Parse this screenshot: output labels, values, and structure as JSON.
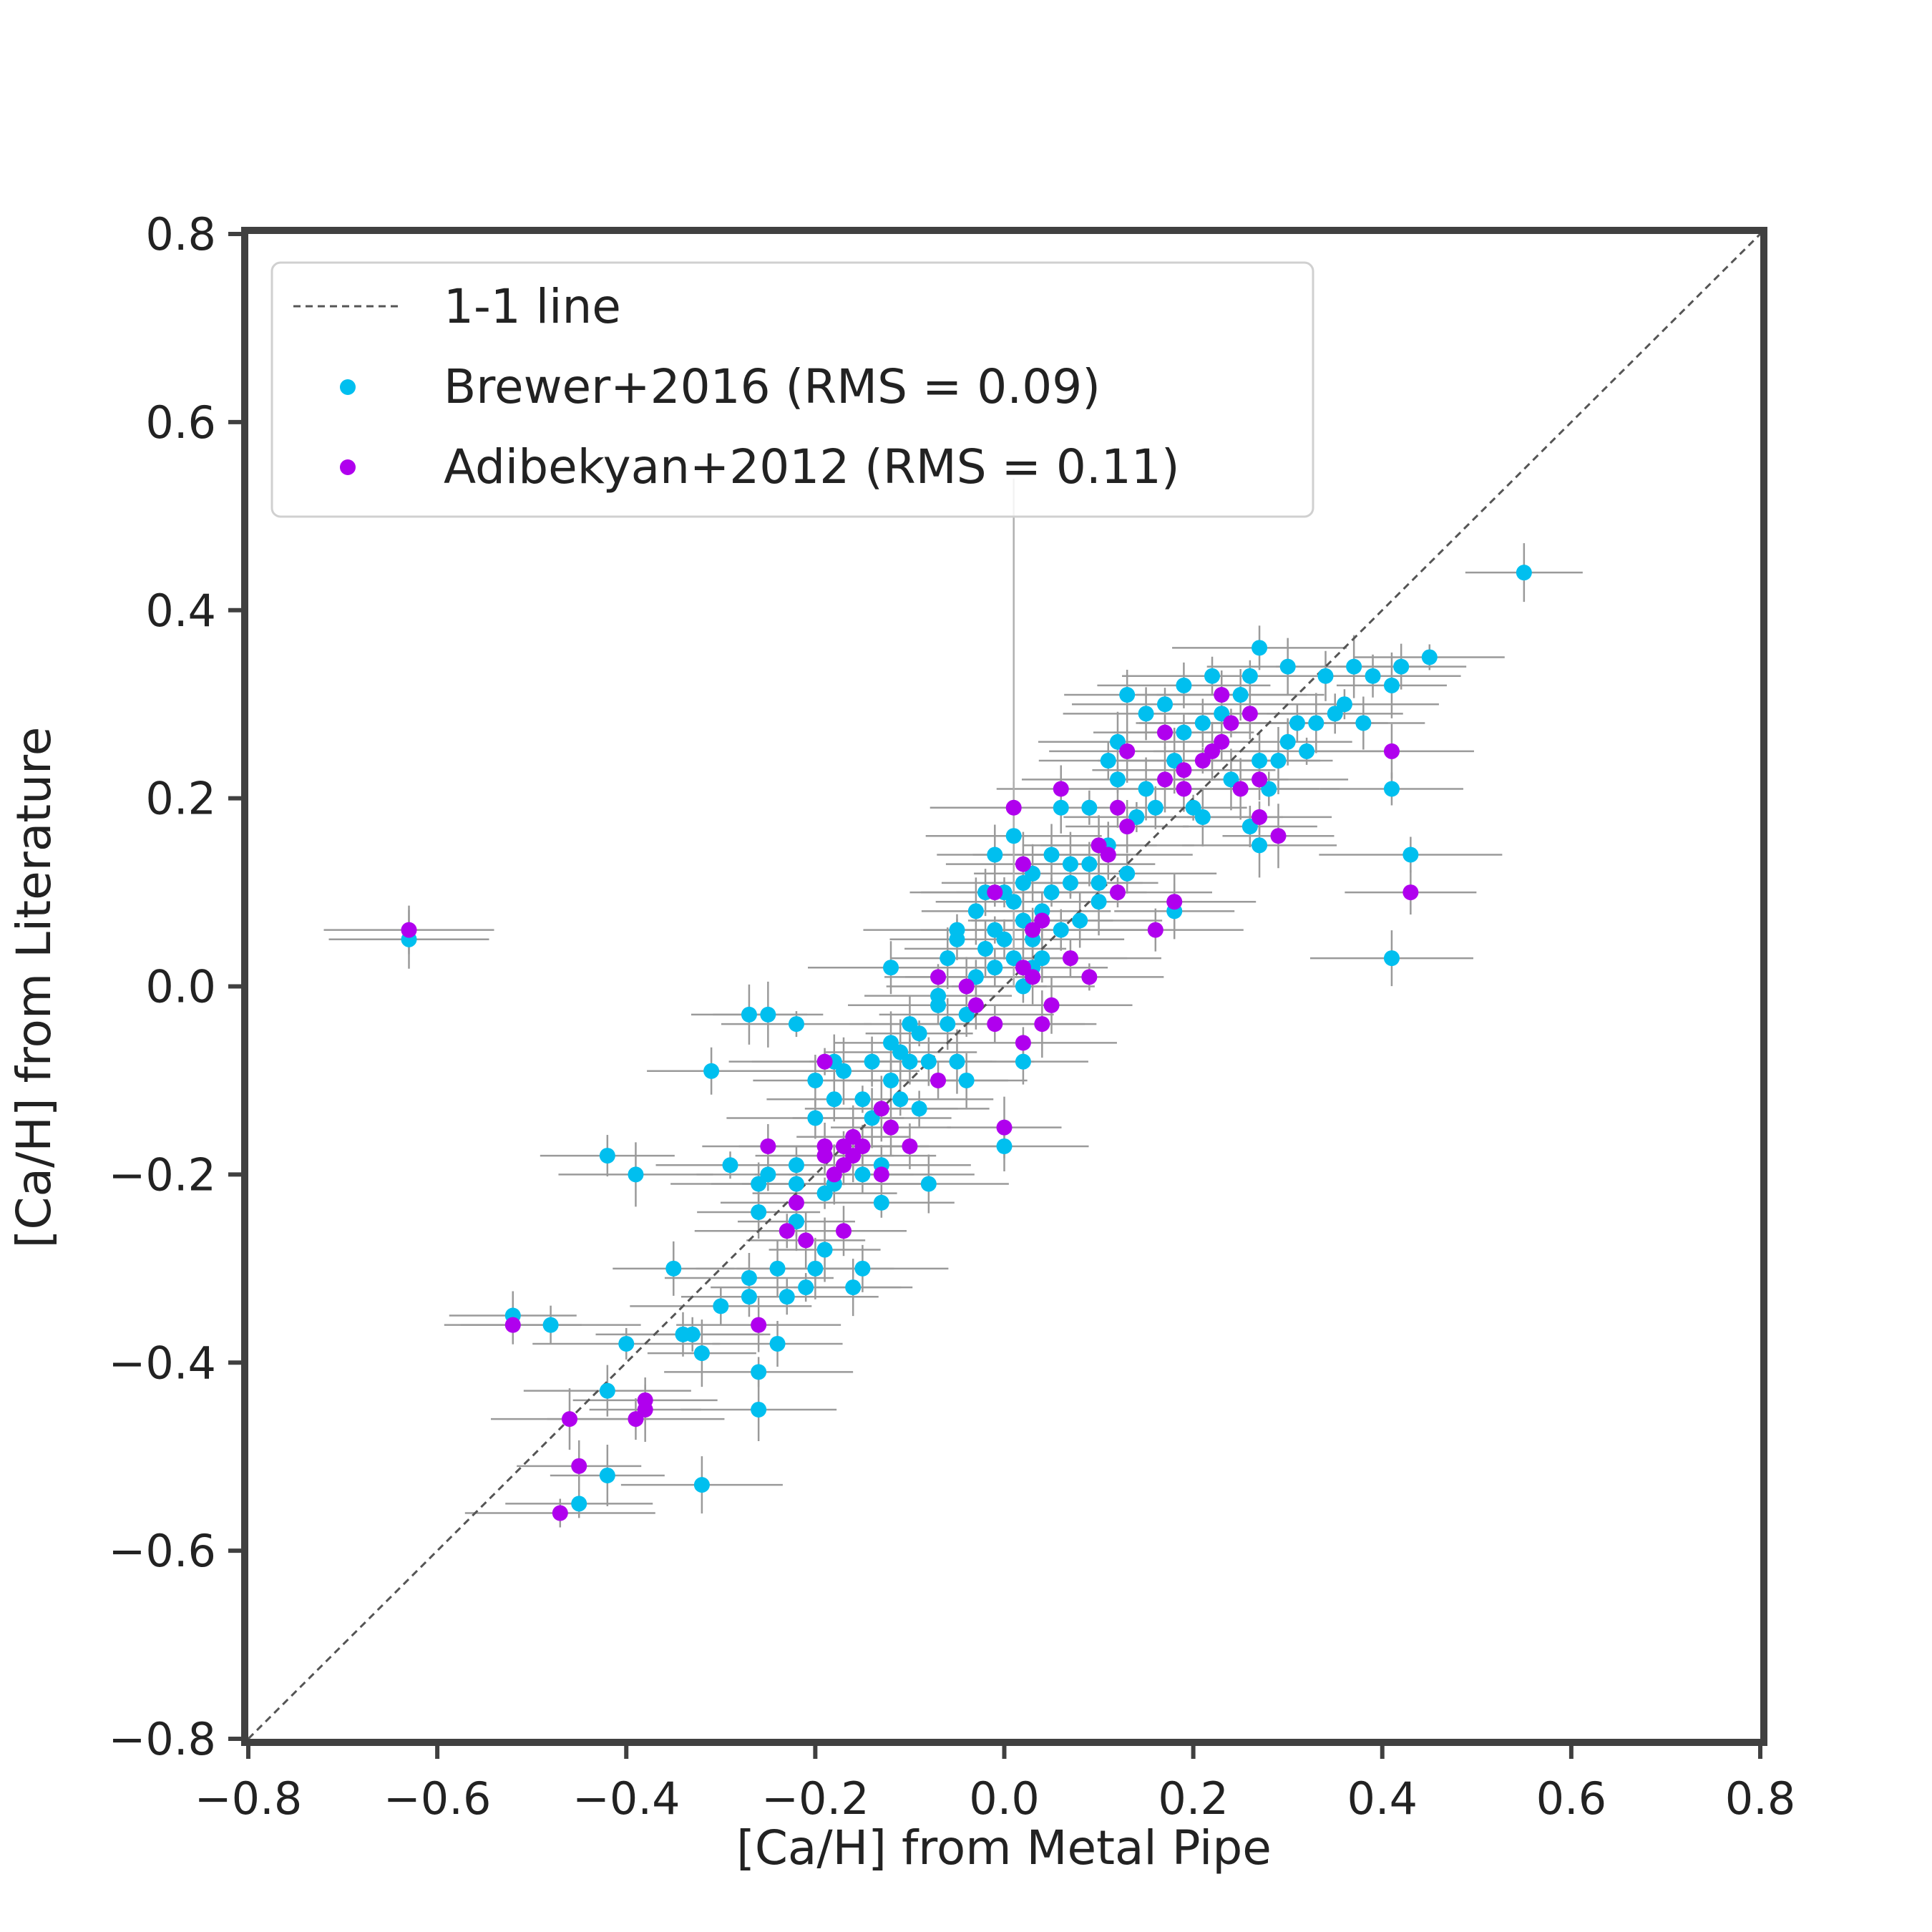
{
  "chart_data": {
    "type": "scatter",
    "xlabel": "[Ca/H] from Metal Pipe",
    "ylabel": "[Ca/H] from Literature",
    "xlim": [
      -0.8,
      0.8
    ],
    "ylim": [
      -0.8,
      0.8
    ],
    "xticks": [
      "−0.8",
      "−0.6",
      "−0.4",
      "−0.2",
      "0.0",
      "0.2",
      "0.4",
      "0.6",
      "0.8"
    ],
    "yticks": [
      "−0.8",
      "−0.6",
      "−0.4",
      "−0.2",
      "0.0",
      "0.2",
      "0.4",
      "0.6",
      "0.8"
    ],
    "grid": false,
    "legend_position": "top-left",
    "reference_line": {
      "label": "1-1 line",
      "style": "dashed",
      "color": "#555555"
    },
    "series": [
      {
        "name": "Brewer+2016 (RMS = 0.09)",
        "color": "#00BFEF",
        "points": [
          [
            -0.63,
            0.05
          ],
          [
            -0.52,
            -0.35
          ],
          [
            -0.48,
            -0.36
          ],
          [
            -0.45,
            -0.55
          ],
          [
            -0.42,
            -0.52
          ],
          [
            -0.42,
            -0.43
          ],
          [
            -0.42,
            -0.18
          ],
          [
            -0.4,
            -0.38
          ],
          [
            -0.39,
            -0.2
          ],
          [
            -0.35,
            -0.3
          ],
          [
            -0.34,
            -0.37
          ],
          [
            -0.33,
            -0.37
          ],
          [
            -0.32,
            -0.39
          ],
          [
            -0.32,
            -0.53
          ],
          [
            -0.31,
            -0.09
          ],
          [
            -0.3,
            -0.34
          ],
          [
            -0.29,
            -0.19
          ],
          [
            -0.27,
            -0.03
          ],
          [
            -0.27,
            -0.31
          ],
          [
            -0.27,
            -0.33
          ],
          [
            -0.26,
            -0.41
          ],
          [
            -0.26,
            -0.45
          ],
          [
            -0.26,
            -0.24
          ],
          [
            -0.26,
            -0.21
          ],
          [
            -0.25,
            -0.2
          ],
          [
            -0.25,
            -0.03
          ],
          [
            -0.24,
            -0.3
          ],
          [
            -0.24,
            -0.38
          ],
          [
            -0.23,
            -0.33
          ],
          [
            -0.22,
            -0.04
          ],
          [
            -0.22,
            -0.25
          ],
          [
            -0.22,
            -0.21
          ],
          [
            -0.22,
            -0.19
          ],
          [
            -0.21,
            -0.32
          ],
          [
            -0.2,
            -0.3
          ],
          [
            -0.2,
            -0.1
          ],
          [
            -0.2,
            -0.14
          ],
          [
            -0.19,
            -0.22
          ],
          [
            -0.19,
            -0.28
          ],
          [
            -0.18,
            -0.08
          ],
          [
            -0.18,
            -0.12
          ],
          [
            -0.18,
            -0.21
          ],
          [
            -0.17,
            -0.09
          ],
          [
            -0.16,
            -0.32
          ],
          [
            -0.15,
            -0.3
          ],
          [
            -0.15,
            -0.2
          ],
          [
            -0.15,
            -0.12
          ],
          [
            -0.14,
            -0.14
          ],
          [
            -0.14,
            -0.08
          ],
          [
            -0.13,
            -0.19
          ],
          [
            -0.13,
            -0.23
          ],
          [
            -0.12,
            -0.06
          ],
          [
            -0.12,
            0.02
          ],
          [
            -0.12,
            -0.1
          ],
          [
            -0.11,
            -0.12
          ],
          [
            -0.11,
            -0.07
          ],
          [
            -0.1,
            -0.04
          ],
          [
            -0.1,
            -0.08
          ],
          [
            -0.09,
            -0.13
          ],
          [
            -0.09,
            -0.05
          ],
          [
            -0.08,
            -0.21
          ],
          [
            -0.08,
            -0.08
          ],
          [
            -0.07,
            -0.02
          ],
          [
            -0.07,
            -0.01
          ],
          [
            -0.06,
            0.03
          ],
          [
            -0.06,
            -0.04
          ],
          [
            -0.05,
            0.05
          ],
          [
            -0.05,
            0.06
          ],
          [
            -0.05,
            -0.08
          ],
          [
            -0.04,
            -0.1
          ],
          [
            -0.04,
            -0.03
          ],
          [
            -0.03,
            0.01
          ],
          [
            -0.03,
            0.08
          ],
          [
            -0.02,
            0.04
          ],
          [
            -0.02,
            0.1
          ],
          [
            -0.01,
            0.02
          ],
          [
            -0.01,
            0.06
          ],
          [
            -0.01,
            0.14
          ],
          [
            0.0,
            -0.17
          ],
          [
            0.0,
            0.05
          ],
          [
            0.0,
            0.1
          ],
          [
            0.01,
            0.09
          ],
          [
            0.01,
            0.03
          ],
          [
            0.01,
            0.16
          ],
          [
            0.02,
            0.0
          ],
          [
            0.02,
            0.07
          ],
          [
            0.02,
            0.11
          ],
          [
            0.02,
            -0.08
          ],
          [
            0.03,
            0.05
          ],
          [
            0.03,
            0.02
          ],
          [
            0.03,
            0.12
          ],
          [
            0.04,
            0.03
          ],
          [
            0.04,
            0.08
          ],
          [
            0.05,
            0.1
          ],
          [
            0.05,
            0.14
          ],
          [
            0.06,
            0.19
          ],
          [
            0.06,
            0.06
          ],
          [
            0.07,
            0.11
          ],
          [
            0.07,
            0.13
          ],
          [
            0.08,
            0.07
          ],
          [
            0.09,
            0.13
          ],
          [
            0.09,
            0.19
          ],
          [
            0.1,
            0.09
          ],
          [
            0.1,
            0.11
          ],
          [
            0.11,
            0.15
          ],
          [
            0.11,
            0.24
          ],
          [
            0.12,
            0.22
          ],
          [
            0.12,
            0.26
          ],
          [
            0.13,
            0.31
          ],
          [
            0.13,
            0.12
          ],
          [
            0.14,
            0.18
          ],
          [
            0.15,
            0.21
          ],
          [
            0.15,
            0.29
          ],
          [
            0.16,
            0.19
          ],
          [
            0.17,
            0.3
          ],
          [
            0.18,
            0.24
          ],
          [
            0.18,
            0.08
          ],
          [
            0.19,
            0.32
          ],
          [
            0.19,
            0.27
          ],
          [
            0.2,
            0.19
          ],
          [
            0.21,
            0.18
          ],
          [
            0.21,
            0.28
          ],
          [
            0.22,
            0.33
          ],
          [
            0.23,
            0.29
          ],
          [
            0.24,
            0.22
          ],
          [
            0.25,
            0.31
          ],
          [
            0.26,
            0.17
          ],
          [
            0.26,
            0.33
          ],
          [
            0.27,
            0.15
          ],
          [
            0.27,
            0.24
          ],
          [
            0.27,
            0.36
          ],
          [
            0.28,
            0.21
          ],
          [
            0.29,
            0.24
          ],
          [
            0.3,
            0.34
          ],
          [
            0.3,
            0.26
          ],
          [
            0.31,
            0.28
          ],
          [
            0.32,
            0.25
          ],
          [
            0.33,
            0.28
          ],
          [
            0.34,
            0.33
          ],
          [
            0.35,
            0.29
          ],
          [
            0.36,
            0.3
          ],
          [
            0.37,
            0.34
          ],
          [
            0.38,
            0.28
          ],
          [
            0.39,
            0.33
          ],
          [
            0.41,
            0.21
          ],
          [
            0.41,
            0.32
          ],
          [
            0.41,
            0.03
          ],
          [
            0.42,
            0.34
          ],
          [
            0.43,
            0.14
          ],
          [
            0.45,
            0.35
          ],
          [
            0.55,
            0.44
          ]
        ]
      },
      {
        "name": "Adibekyan+2012 (RMS = 0.11)",
        "color": "#B000EE",
        "points": [
          [
            -0.63,
            0.06
          ],
          [
            -0.52,
            -0.36
          ],
          [
            -0.47,
            -0.56
          ],
          [
            -0.46,
            -0.46
          ],
          [
            -0.45,
            -0.51
          ],
          [
            -0.39,
            -0.46
          ],
          [
            -0.38,
            -0.44
          ],
          [
            -0.38,
            -0.45
          ],
          [
            -0.26,
            -0.36
          ],
          [
            -0.25,
            -0.17
          ],
          [
            -0.23,
            -0.26
          ],
          [
            -0.22,
            -0.23
          ],
          [
            -0.21,
            -0.27
          ],
          [
            -0.19,
            -0.17
          ],
          [
            -0.19,
            -0.18
          ],
          [
            -0.19,
            -0.08
          ],
          [
            -0.18,
            -0.2
          ],
          [
            -0.17,
            -0.26
          ],
          [
            -0.17,
            -0.19
          ],
          [
            -0.17,
            -0.17
          ],
          [
            -0.16,
            -0.16
          ],
          [
            -0.16,
            -0.18
          ],
          [
            -0.15,
            -0.17
          ],
          [
            -0.13,
            -0.2
          ],
          [
            -0.13,
            -0.13
          ],
          [
            -0.12,
            -0.15
          ],
          [
            -0.1,
            -0.17
          ],
          [
            -0.07,
            -0.1
          ],
          [
            -0.07,
            0.01
          ],
          [
            -0.04,
            0.0
          ],
          [
            -0.03,
            -0.02
          ],
          [
            -0.01,
            -0.04
          ],
          [
            -0.01,
            0.1
          ],
          [
            0.0,
            -0.15
          ],
          [
            0.01,
            0.19
          ],
          [
            0.02,
            0.02
          ],
          [
            0.02,
            -0.06
          ],
          [
            0.02,
            0.13
          ],
          [
            0.03,
            0.01
          ],
          [
            0.03,
            0.06
          ],
          [
            0.04,
            0.07
          ],
          [
            0.04,
            -0.04
          ],
          [
            0.05,
            -0.02
          ],
          [
            0.06,
            0.21
          ],
          [
            0.07,
            0.03
          ],
          [
            0.09,
            0.01
          ],
          [
            0.1,
            0.15
          ],
          [
            0.11,
            0.14
          ],
          [
            0.12,
            0.19
          ],
          [
            0.12,
            0.1
          ],
          [
            0.13,
            0.25
          ],
          [
            0.13,
            0.17
          ],
          [
            0.16,
            0.06
          ],
          [
            0.17,
            0.27
          ],
          [
            0.17,
            0.22
          ],
          [
            0.18,
            0.09
          ],
          [
            0.19,
            0.21
          ],
          [
            0.19,
            0.23
          ],
          [
            0.21,
            0.24
          ],
          [
            0.22,
            0.25
          ],
          [
            0.23,
            0.31
          ],
          [
            0.23,
            0.26
          ],
          [
            0.24,
            0.28
          ],
          [
            0.25,
            0.21
          ],
          [
            0.26,
            0.29
          ],
          [
            0.27,
            0.22
          ],
          [
            0.27,
            0.18
          ],
          [
            0.29,
            0.16
          ],
          [
            0.41,
            0.25
          ],
          [
            0.43,
            0.1
          ]
        ]
      }
    ]
  },
  "legend": {
    "line_label": "1-1 line",
    "series_a_label": "Brewer+2016 (RMS = 0.09)",
    "series_b_label": "Adibekyan+2012 (RMS = 0.11)"
  }
}
